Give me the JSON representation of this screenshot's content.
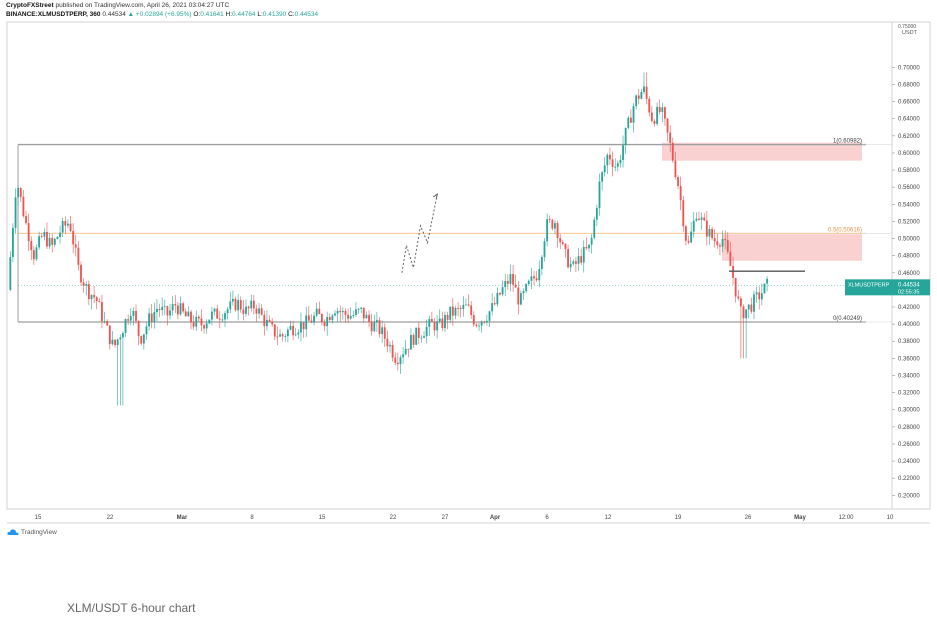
{
  "header": {
    "publisher": "CryptoFXStreet",
    "published_text": "published on TradingView.com, April 26, 2021 03:04:27 UTC",
    "symbol": "BINANCE:XLMUSDTPERP, 360",
    "last": "0.44534",
    "change": "▲ +0.02894 (+6.95%)",
    "o_label": "O:",
    "o": "0.41641",
    "h_label": "H:",
    "h": "0.44764",
    "l_label": "L:",
    "l": "0.41390",
    "c_label": "C:",
    "c": "0.44534"
  },
  "footer": {
    "brand": "TradingView",
    "caption": "XLM/USDT 6-hour chart"
  },
  "colors": {
    "up": "#26a69a",
    "down": "#ef5350",
    "fib_level": "#9e9e9e",
    "fib_mid": "#f5b26b",
    "supply_zone": "#f8c9c9",
    "price_tag": "#26a69a"
  },
  "chart_data": {
    "type": "candlestick",
    "symbol": "XLMUSDTPERP",
    "interval": "360",
    "price_unit": "USDT",
    "y_ticks": [
      "0.70000",
      "0.68000",
      "0.66000",
      "0.64000",
      "0.62000",
      "0.60000",
      "0.58000",
      "0.56000",
      "0.54000",
      "0.52000",
      "0.50000",
      "0.48000",
      "0.46000",
      "0.44000",
      "0.42000",
      "0.40000",
      "0.38000",
      "0.36000",
      "0.34000",
      "0.32000",
      "0.30000",
      "0.28000",
      "0.26000",
      "0.24000",
      "0.22000",
      "0.20000"
    ],
    "y_top_label": "0.75000",
    "x_ticks": [
      "15",
      "22",
      "Mar",
      "8",
      "15",
      "22",
      "27",
      "Apr",
      "6",
      "12",
      "19",
      "26",
      "May",
      "12:00",
      "10"
    ],
    "ylim": [
      0.184,
      0.753
    ],
    "last_price": {
      "label": "XLMUSDTPERP",
      "value": "0.44534",
      "countdown": "02:55:35"
    },
    "fib_levels": [
      {
        "label": "1(0.60982)",
        "value": 0.60982
      },
      {
        "label": "0.5(0.50616)",
        "value": 0.50616
      },
      {
        "label": "0(0.40249)",
        "value": 0.40249
      }
    ],
    "zones": [
      {
        "from": 0.591,
        "to": 0.612
      },
      {
        "from": 0.474,
        "to": 0.505
      }
    ],
    "resistance_line": 0.4618,
    "projection_path": [
      [
        0.445,
        0.46
      ],
      [
        0.45,
        0.492
      ],
      [
        0.458,
        0.466
      ],
      [
        0.466,
        0.515
      ],
      [
        0.474,
        0.495
      ],
      [
        0.485,
        0.552
      ]
    ],
    "price_path": [
      [
        0.0,
        0.44
      ],
      [
        0.01,
        0.57
      ],
      [
        0.02,
        0.52
      ],
      [
        0.03,
        0.48
      ],
      [
        0.04,
        0.505
      ],
      [
        0.05,
        0.49
      ],
      [
        0.06,
        0.51
      ],
      [
        0.07,
        0.52
      ],
      [
        0.08,
        0.465
      ],
      [
        0.09,
        0.44
      ],
      [
        0.1,
        0.43
      ],
      [
        0.11,
        0.4
      ],
      [
        0.12,
        0.372
      ],
      [
        0.13,
        0.395
      ],
      [
        0.14,
        0.42
      ],
      [
        0.15,
        0.382
      ],
      [
        0.16,
        0.405
      ],
      [
        0.17,
        0.42
      ],
      [
        0.18,
        0.41
      ],
      [
        0.19,
        0.423
      ],
      [
        0.2,
        0.41
      ],
      [
        0.21,
        0.402
      ],
      [
        0.22,
        0.4
      ],
      [
        0.23,
        0.41
      ],
      [
        0.24,
        0.412
      ],
      [
        0.25,
        0.418
      ],
      [
        0.26,
        0.425
      ],
      [
        0.27,
        0.415
      ],
      [
        0.28,
        0.422
      ],
      [
        0.29,
        0.405
      ],
      [
        0.3,
        0.392
      ],
      [
        0.31,
        0.385
      ],
      [
        0.32,
        0.395
      ],
      [
        0.33,
        0.398
      ],
      [
        0.34,
        0.402
      ],
      [
        0.35,
        0.41
      ],
      [
        0.36,
        0.405
      ],
      [
        0.37,
        0.42
      ],
      [
        0.38,
        0.412
      ],
      [
        0.39,
        0.41
      ],
      [
        0.4,
        0.415
      ],
      [
        0.41,
        0.402
      ],
      [
        0.42,
        0.395
      ],
      [
        0.43,
        0.38
      ],
      [
        0.44,
        0.36
      ],
      [
        0.45,
        0.372
      ],
      [
        0.46,
        0.385
      ],
      [
        0.47,
        0.392
      ],
      [
        0.48,
        0.4
      ],
      [
        0.49,
        0.398
      ],
      [
        0.5,
        0.412
      ],
      [
        0.51,
        0.415
      ],
      [
        0.52,
        0.42
      ],
      [
        0.53,
        0.402
      ],
      [
        0.54,
        0.408
      ],
      [
        0.55,
        0.42
      ],
      [
        0.56,
        0.44
      ],
      [
        0.57,
        0.455
      ],
      [
        0.58,
        0.425
      ],
      [
        0.59,
        0.445
      ],
      [
        0.6,
        0.46
      ],
      [
        0.61,
        0.515
      ],
      [
        0.62,
        0.52
      ],
      [
        0.63,
        0.482
      ],
      [
        0.64,
        0.465
      ],
      [
        0.65,
        0.48
      ],
      [
        0.66,
        0.49
      ],
      [
        0.67,
        0.562
      ],
      [
        0.68,
        0.6
      ],
      [
        0.69,
        0.582
      ],
      [
        0.7,
        0.622
      ],
      [
        0.71,
        0.66
      ],
      [
        0.72,
        0.675
      ],
      [
        0.73,
        0.64
      ],
      [
        0.74,
        0.65
      ],
      [
        0.75,
        0.61
      ],
      [
        0.76,
        0.56
      ],
      [
        0.77,
        0.488
      ],
      [
        0.78,
        0.532
      ],
      [
        0.79,
        0.512
      ],
      [
        0.8,
        0.498
      ],
      [
        0.81,
        0.5
      ],
      [
        0.82,
        0.462
      ],
      [
        0.83,
        0.412
      ],
      [
        0.84,
        0.42
      ],
      [
        0.85,
        0.432
      ],
      [
        0.86,
        0.445
      ]
    ]
  }
}
